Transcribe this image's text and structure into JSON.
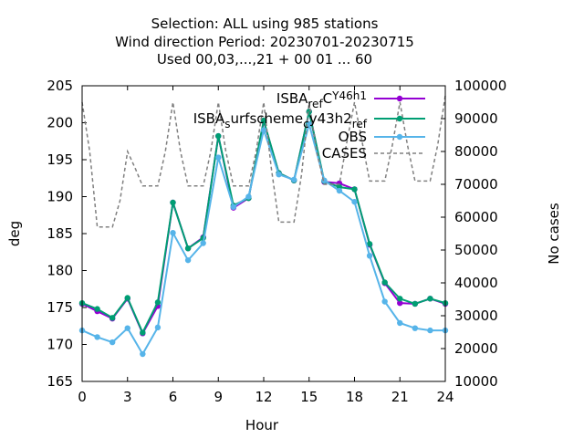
{
  "chart_data": {
    "type": "line",
    "title": [
      "Selection: ALL using   985 stations",
      "Wind direction   Period: 20230701-20230715",
      "Used  00,03,...,21  + 00 01 ... 60"
    ],
    "xlabel": "Hour",
    "ylabel": "deg",
    "y2label": "No cases",
    "xlim": [
      0,
      24
    ],
    "ylim": [
      165,
      205
    ],
    "y2lim": [
      10000,
      100000
    ],
    "xticks": [
      "0",
      "3",
      "6",
      "9",
      "12",
      "15",
      "18",
      "21",
      "24"
    ],
    "yticks": [
      "165",
      "170",
      "175",
      "180",
      "185",
      "190",
      "195",
      "200",
      "205"
    ],
    "y2ticks": [
      "10000",
      "20000",
      "30000",
      "40000",
      "50000",
      "60000",
      "70000",
      "80000",
      "90000",
      "100000"
    ],
    "legend_position": "top-right",
    "x": [
      0,
      1,
      2,
      3,
      4,
      5,
      6,
      7,
      8,
      9,
      10,
      11,
      12,
      13,
      14,
      15,
      16,
      17,
      18,
      19,
      20,
      21,
      22,
      23,
      24
    ],
    "series": [
      {
        "name": "ISBA_ref_CY46h1",
        "color": "#9400d3",
        "values": [
          175.5,
          174.5,
          173.5,
          176.2,
          171.5,
          175.2,
          189.2,
          183.0,
          184.5,
          198.2,
          188.5,
          189.8,
          200.2,
          193.2,
          192.2,
          201.5,
          192.0,
          191.8,
          191.0,
          183.5,
          178.3,
          175.6,
          175.5,
          176.2,
          175.5
        ]
      },
      {
        "name": "ISBA_surfscheme_cy43h2_ref",
        "color": "#009e73",
        "values": [
          175.6,
          174.8,
          173.6,
          176.3,
          171.6,
          175.7,
          189.2,
          183.0,
          184.4,
          198.2,
          188.8,
          189.8,
          200.3,
          193.2,
          192.2,
          201.5,
          192.1,
          191.3,
          191.0,
          183.6,
          178.4,
          176.2,
          175.5,
          176.2,
          175.6
        ]
      },
      {
        "name": "OBS",
        "color": "#56b4e9",
        "values": [
          171.9,
          171.0,
          170.3,
          172.2,
          168.7,
          172.3,
          185.1,
          181.4,
          183.7,
          195.3,
          188.6,
          190.0,
          199.0,
          193.0,
          192.3,
          199.8,
          192.2,
          190.8,
          189.3,
          182.0,
          175.8,
          172.9,
          172.2,
          171.9,
          171.9
        ]
      },
      {
        "name": "CASES",
        "color": "#808080",
        "axis": "y2",
        "x": [
          0,
          0.5,
          1,
          1.5,
          2,
          2.5,
          3,
          3.5,
          4,
          4.5,
          5,
          5.5,
          6,
          6.5,
          7,
          7.5,
          8,
          8.5,
          9,
          9.5,
          10,
          10.5,
          11,
          11.5,
          12,
          12.5,
          13,
          13.5,
          14,
          14.5,
          15,
          15.5,
          16,
          16.5,
          17,
          17.5,
          18,
          18.5,
          19,
          19.5,
          20,
          20.5,
          21,
          21.5,
          22,
          22.5,
          23,
          23.5,
          24
        ],
        "values": [
          95000,
          80000,
          57000,
          57000,
          57000,
          65000,
          80000,
          75000,
          69500,
          69500,
          69500,
          80000,
          95000,
          80000,
          69500,
          69500,
          69500,
          80000,
          95000,
          80000,
          69500,
          69500,
          69500,
          80000,
          95000,
          75000,
          58500,
          58500,
          58500,
          73000,
          95000,
          80000,
          70000,
          70000,
          70000,
          83000,
          95000,
          83000,
          71000,
          71000,
          71000,
          82000,
          95000,
          82000,
          71000,
          71000,
          71000,
          82000,
          97000
        ]
      }
    ]
  }
}
